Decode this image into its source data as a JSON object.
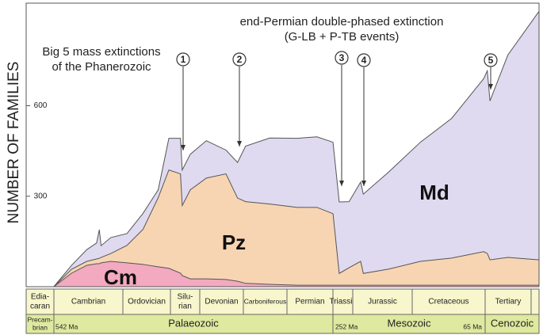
{
  "chart_data": {
    "type": "area",
    "stacked": true,
    "y_label": "NUMBER OF FAMILIES",
    "annotations": [
      "Big 5 mass extinctions",
      "of the Phanerozoic",
      "end-Permian double-phased extinction",
      "(G-LB + P-TB events)"
    ],
    "extinctions": [
      "1",
      "2",
      "3",
      "4",
      "5"
    ],
    "x": [
      544,
      524,
      507,
      496,
      493,
      491,
      480,
      462,
      444,
      427,
      415,
      402,
      400,
      391,
      373,
      351,
      338,
      329,
      302,
      271,
      249,
      231,
      224,
      213,
      200,
      197,
      169,
      133,
      98,
      62,
      58,
      55,
      35,
      0
    ],
    "xlim": [
      575,
      0
    ],
    "ylim": [
      0,
      940
    ],
    "yticks": [
      300,
      600
    ],
    "series": [
      {
        "name": "Cm",
        "color": "#f3a9c0",
        "values": [
          0,
          45,
          71,
          76,
          76,
          79,
          84,
          79,
          74,
          66,
          61,
          45,
          37,
          26,
          26,
          24,
          18,
          11,
          8,
          5,
          5,
          5,
          5,
          5,
          5,
          5,
          5,
          5,
          5,
          5,
          5,
          5,
          5,
          5
        ]
      },
      {
        "name": "Pz",
        "color": "#f7d5b3",
        "values": [
          0,
          13,
          13,
          16,
          18,
          18,
          26,
          58,
          116,
          229,
          326,
          329,
          232,
          295,
          334,
          350,
          276,
          271,
          266,
          258,
          258,
          237,
          39,
          58,
          79,
          39,
          53,
          79,
          90,
          111,
          105,
          84,
          92,
          84
        ]
      },
      {
        "name": "Md",
        "color": "#dfdaef",
        "values": [
          0,
          13,
          39,
          53,
          95,
          39,
          53,
          39,
          53,
          26,
          105,
          118,
          118,
          118,
          124,
          79,
          118,
          184,
          219,
          229,
          234,
          237,
          237,
          219,
          263,
          263,
          321,
          395,
          463,
          574,
          606,
          527,
          671,
          824
        ]
      }
    ],
    "periods": [
      [
        "Edia-",
        "caran"
      ],
      [
        "Cambrian"
      ],
      [
        "Ordovician"
      ],
      [
        "Silu-",
        "rian"
      ],
      [
        "Devonian"
      ],
      [
        "Carboniferous"
      ],
      [
        "Permian"
      ],
      [
        "Triassic"
      ],
      [
        "Jurassic"
      ],
      [
        "Cretaceous"
      ],
      [
        "Tertiary"
      ]
    ],
    "eras": [
      [
        "Precam-",
        "brian"
      ],
      [
        "Palaeozoic"
      ],
      [
        "Mesozoic"
      ],
      [
        "Cenozoic"
      ]
    ],
    "ages": [
      "542 Ma",
      "252 Ma",
      "65 Ma"
    ]
  }
}
